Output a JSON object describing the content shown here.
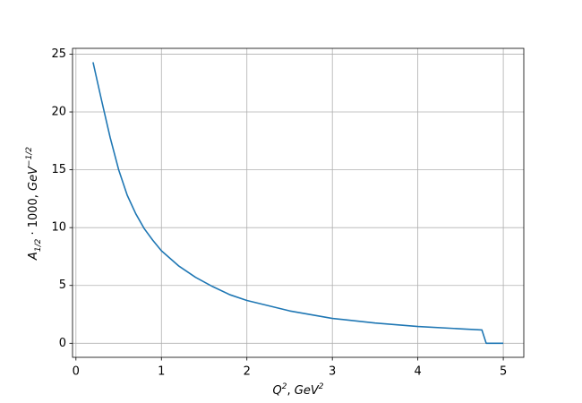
{
  "chart_data": {
    "type": "line",
    "xlabel": [
      "Q",
      "2",
      ", ",
      "GeV",
      "2"
    ],
    "ylabel": [
      "A",
      "1/2",
      " · 1000, ",
      "GeV",
      "−1/2"
    ],
    "x": [
      0.2,
      0.3,
      0.4,
      0.5,
      0.6,
      0.7,
      0.8,
      0.9,
      1.0,
      1.2,
      1.4,
      1.6,
      1.8,
      2.0,
      2.5,
      3.0,
      3.5,
      4.0,
      4.5,
      4.75,
      4.8,
      5.0
    ],
    "series": [
      {
        "color": "#1f77b4",
        "values": [
          24.3,
          21.0,
          17.8,
          15.0,
          12.8,
          11.2,
          9.9,
          8.9,
          8.0,
          6.7,
          5.7,
          4.9,
          4.2,
          3.7,
          2.8,
          2.15,
          1.75,
          1.45,
          1.25,
          1.15,
          0,
          0
        ]
      }
    ],
    "xlim": [
      -0.04,
      5.24
    ],
    "ylim": [
      -1.215,
      25.5
    ],
    "xticks": [
      0,
      1,
      2,
      3,
      4,
      5
    ],
    "yticks": [
      0,
      5,
      10,
      15,
      20,
      25
    ],
    "grid": true
  }
}
